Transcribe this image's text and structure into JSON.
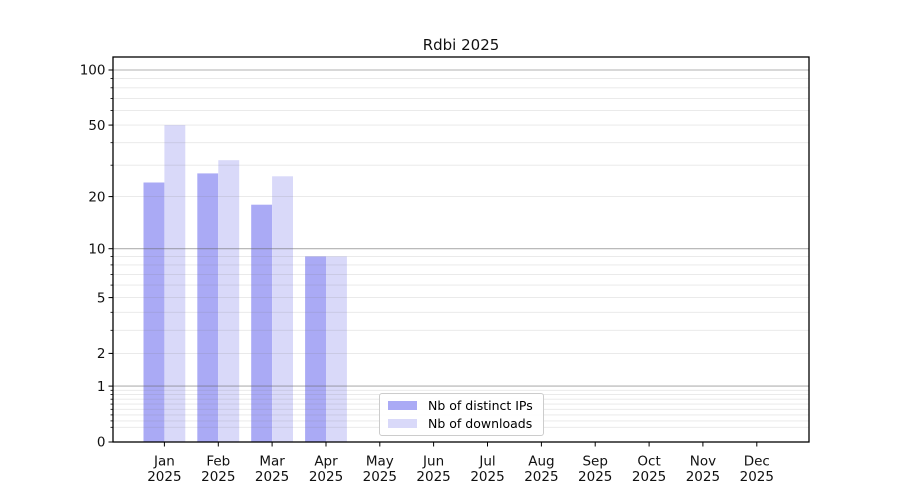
{
  "chart_data": {
    "type": "bar",
    "title": "Rdbi 2025",
    "categories": [
      "Jan",
      "Feb",
      "Mar",
      "Apr",
      "May",
      "Jun",
      "Jul",
      "Aug",
      "Sep",
      "Oct",
      "Nov",
      "Dec"
    ],
    "category_year": "2025",
    "series": [
      {
        "name": "Nb of distinct IPs",
        "color": "#aaaaf5",
        "values": [
          24,
          27,
          18,
          9,
          0,
          0,
          0,
          0,
          0,
          0,
          0,
          0
        ]
      },
      {
        "name": "Nb of downloads",
        "color": "#d9d9f9",
        "values": [
          50,
          32,
          26,
          9,
          0,
          0,
          0,
          0,
          0,
          0,
          0,
          0
        ]
      }
    ],
    "xlabel": "",
    "ylabel": "",
    "yscale": "log1p",
    "ylim": [
      0,
      118
    ],
    "yticks_labeled": [
      100,
      50,
      20,
      10,
      5,
      2,
      1,
      0
    ],
    "yticks_major": [
      100,
      10,
      1
    ],
    "yticks_minor": [
      0.2,
      0.3,
      0.4,
      0.5,
      0.6,
      0.7,
      0.8,
      0.9,
      2,
      3,
      4,
      5,
      6,
      7,
      8,
      9,
      20,
      30,
      40,
      50,
      60,
      70,
      80,
      90
    ],
    "grid": true,
    "legend_position": "inside-bottom-center",
    "colors": {
      "grid_major": "rgba(100,100,100,0.50)",
      "grid_minor": "rgba(120,120,120,0.18)",
      "spine": "#000000",
      "tick_text": "#111111"
    }
  }
}
